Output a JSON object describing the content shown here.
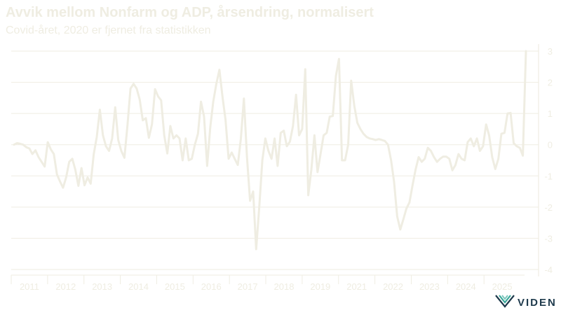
{
  "chart_data": {
    "type": "line",
    "title": "Avvik mellom Nonfarm og ADP, årsendring, normalisert",
    "subtitle": "Covid-året, 2020 er fjernet fra statistikken",
    "ylim": [
      -4,
      3
    ],
    "yticks": [
      3,
      2,
      1,
      0,
      -1,
      -2,
      -3,
      -4
    ],
    "xlabels": [
      "2011",
      "2012",
      "2013",
      "2014",
      "2015",
      "2016",
      "2017",
      "2018",
      "2019",
      "2021",
      "2022",
      "2023",
      "2024",
      "2025"
    ],
    "grid": true,
    "color": "#efede2",
    "series": [
      {
        "values": [
          0.0,
          0.05,
          0.03,
          0.0,
          -0.08,
          -0.12,
          -0.3,
          -0.18,
          -0.4,
          -0.55,
          -0.7,
          0.08,
          -0.15,
          -0.3,
          -0.95,
          -1.18,
          -1.38,
          -1.05,
          -0.55,
          -0.45,
          -0.8,
          -1.32,
          -0.75,
          -1.3,
          -1.05,
          -1.25,
          -0.3,
          0.25,
          1.12,
          0.3,
          -0.05,
          -0.2,
          0.2,
          1.2,
          0.15,
          -0.2,
          -0.42,
          0.6,
          1.8,
          1.95,
          1.8,
          1.45,
          0.78,
          0.85,
          0.22,
          0.65,
          1.78,
          1.55,
          1.42,
          0.3,
          -0.28,
          0.6,
          0.2,
          0.3,
          0.2,
          -0.5,
          0.2,
          -0.5,
          -0.45,
          0.0,
          0.35,
          1.38,
          0.9,
          -0.68,
          0.55,
          1.38,
          1.95,
          2.4,
          1.55,
          0.8,
          -0.45,
          -0.25,
          -0.45,
          -0.65,
          0.2,
          1.48,
          -0.4,
          -1.8,
          -1.5,
          -3.35,
          -2.0,
          -0.5,
          0.2,
          -0.2,
          -0.45,
          0.2,
          -0.68,
          0.38,
          0.45,
          -0.05,
          0.1,
          0.6,
          1.6,
          0.3,
          0.5,
          2.42,
          -1.62,
          -0.8,
          0.3,
          -0.88,
          -0.3,
          0.3,
          0.38,
          0.9,
          0.92,
          2.2,
          2.75,
          -0.5,
          -0.5,
          0.0,
          2.05,
          1.25,
          0.7,
          0.5,
          0.35,
          0.25,
          0.2,
          0.18,
          0.15,
          0.18,
          0.15,
          0.12,
          0.0,
          -0.5,
          -1.2,
          -2.3,
          -2.72,
          -2.4,
          -2.05,
          -1.85,
          -1.3,
          -0.8,
          -0.4,
          -0.55,
          -0.45,
          -0.1,
          -0.2,
          -0.4,
          -0.55,
          -0.45,
          -0.38,
          -0.38,
          -0.45,
          -0.82,
          -0.65,
          -0.3,
          -0.45,
          -0.5,
          0.08,
          0.2,
          -0.05,
          0.2,
          -0.2,
          -0.05,
          0.65,
          0.3,
          -0.4,
          -0.78,
          -0.45,
          0.35,
          0.38,
          1.0,
          1.02,
          0.05,
          -0.05,
          -0.1,
          -0.35,
          3.0
        ]
      }
    ]
  },
  "brand": {
    "name": "VIDEN",
    "logo_icon": "viden-logo-icon",
    "colors": {
      "dark": "#1e3a4c",
      "accent": "#3aa89a"
    }
  }
}
